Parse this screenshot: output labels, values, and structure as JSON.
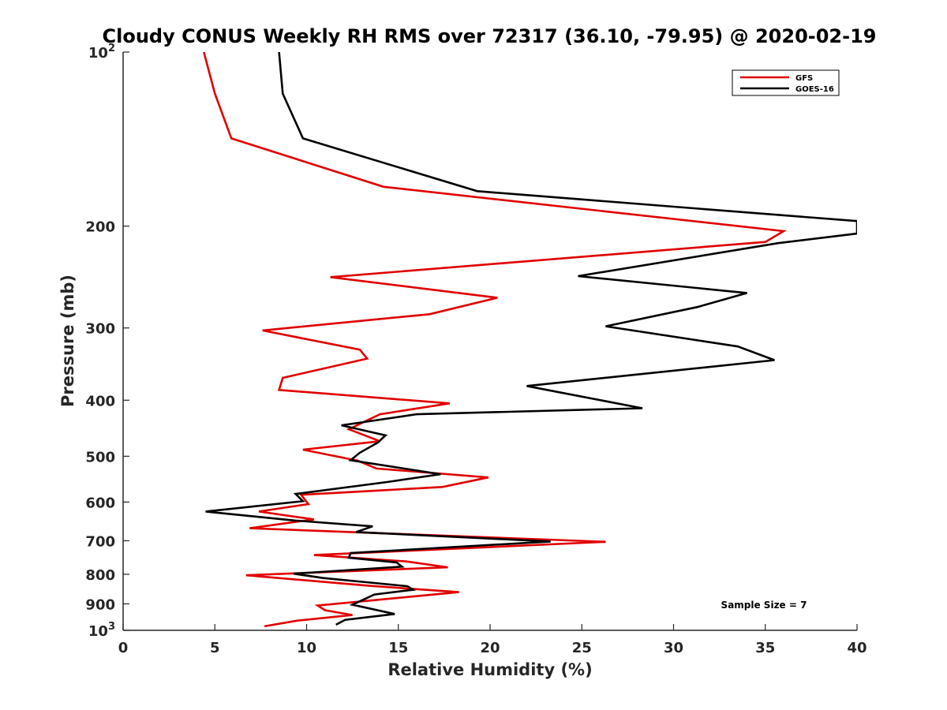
{
  "chart_data": {
    "type": "line",
    "title": "Cloudy CONUS Weekly RH RMS over 72317 (36.10, -79.95) @ 2020-02-19",
    "xlabel": "Relative Humidity (%)",
    "ylabel": "Pressure (mb)",
    "xlim": [
      0,
      40
    ],
    "ylim": [
      100,
      1000
    ],
    "y_scale": "log",
    "y_reversed": true,
    "grid": false,
    "legend_position": "top-right",
    "annotation": "Sample Size = 7",
    "x_ticks": [
      "0",
      "5",
      "10",
      "15",
      "20",
      "25",
      "30",
      "35",
      "40"
    ],
    "x_tick_values": [
      0,
      5,
      10,
      15,
      20,
      25,
      30,
      35,
      40
    ],
    "y_ticks": [
      {
        "value": 100,
        "base": "10",
        "exp": "2"
      },
      {
        "value": 200,
        "label": "200"
      },
      {
        "value": 300,
        "label": "300"
      },
      {
        "value": 400,
        "label": "400"
      },
      {
        "value": 500,
        "label": "500"
      },
      {
        "value": 600,
        "label": "600"
      },
      {
        "value": 700,
        "label": "700"
      },
      {
        "value": 800,
        "label": "800"
      },
      {
        "value": 900,
        "label": "900"
      },
      {
        "value": 1000,
        "base": "10",
        "exp": "3"
      }
    ],
    "series": [
      {
        "name": "GFS",
        "color": "#e00000",
        "points": [
          [
            4.4,
            100
          ],
          [
            5.0,
            118
          ],
          [
            5.9,
            141
          ],
          [
            14.2,
            171
          ],
          [
            36.0,
            204
          ],
          [
            35.0,
            213
          ],
          [
            11.3,
            245
          ],
          [
            20.4,
            266
          ],
          [
            16.7,
            284
          ],
          [
            7.6,
            303
          ],
          [
            12.9,
            327
          ],
          [
            13.3,
            339
          ],
          [
            8.7,
            366
          ],
          [
            8.5,
            384
          ],
          [
            17.8,
            405
          ],
          [
            14.0,
            423
          ],
          [
            12.3,
            449
          ],
          [
            14.0,
            471
          ],
          [
            9.8,
            487
          ],
          [
            12.8,
            509
          ],
          [
            13.8,
            525
          ],
          [
            19.9,
            544
          ],
          [
            17.4,
            565
          ],
          [
            9.7,
            583
          ],
          [
            10.1,
            605
          ],
          [
            7.4,
            623
          ],
          [
            10.4,
            643
          ],
          [
            6.9,
            666
          ],
          [
            26.3,
            703
          ],
          [
            10.4,
            741
          ],
          [
            15.4,
            760
          ],
          [
            17.7,
            778
          ],
          [
            6.7,
            803
          ],
          [
            13.5,
            838
          ],
          [
            18.3,
            859
          ],
          [
            10.6,
            906
          ],
          [
            11.0,
            923
          ],
          [
            12.5,
            941
          ],
          [
            9.5,
            962
          ],
          [
            7.7,
            984
          ]
        ]
      },
      {
        "name": "GOES-16",
        "color": "#000000",
        "points": [
          [
            8.5,
            100
          ],
          [
            8.7,
            118
          ],
          [
            9.8,
            141
          ],
          [
            19.3,
            174
          ],
          [
            33.6,
            189
          ],
          [
            40.0,
            196
          ],
          [
            40.0,
            206
          ],
          [
            35.7,
            214
          ],
          [
            24.8,
            244
          ],
          [
            34.0,
            261
          ],
          [
            31.3,
            276
          ],
          [
            26.3,
            298
          ],
          [
            33.5,
            323
          ],
          [
            35.5,
            341
          ],
          [
            22.0,
            378
          ],
          [
            28.3,
            413
          ],
          [
            16.0,
            423
          ],
          [
            11.9,
            442
          ],
          [
            14.3,
            460
          ],
          [
            13.9,
            473
          ],
          [
            12.9,
            493
          ],
          [
            12.4,
            508
          ],
          [
            17.3,
            537
          ],
          [
            14.4,
            554
          ],
          [
            9.4,
            581
          ],
          [
            9.8,
            598
          ],
          [
            4.5,
            623
          ],
          [
            9.4,
            646
          ],
          [
            13.6,
            661
          ],
          [
            12.7,
            676
          ],
          [
            23.3,
            702
          ],
          [
            12.4,
            735
          ],
          [
            12.3,
            749
          ],
          [
            14.9,
            763
          ],
          [
            15.2,
            776
          ],
          [
            9.3,
            798
          ],
          [
            10.9,
            812
          ],
          [
            15.5,
            839
          ],
          [
            15.8,
            851
          ],
          [
            13.7,
            867
          ],
          [
            12.5,
            903
          ],
          [
            14.8,
            937
          ],
          [
            12.1,
            959
          ],
          [
            11.6,
            978
          ]
        ]
      }
    ]
  }
}
